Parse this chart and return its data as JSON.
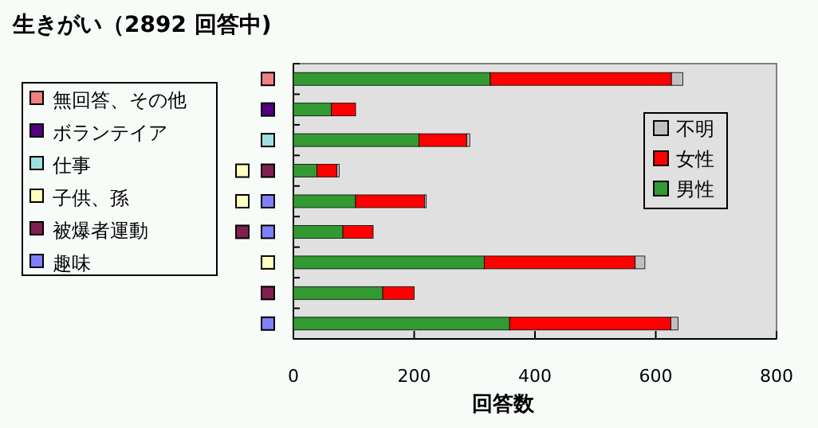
{
  "chart_data": {
    "type": "bar",
    "orientation": "horizontal",
    "stacked": true,
    "title": "生きがい（2892 回答中)",
    "xlabel": "回答数",
    "categories": [
      null,
      null,
      null,
      null,
      null,
      null,
      null,
      null,
      null
    ],
    "series": [
      {
        "name": "男性",
        "color": "#339933",
        "values": [
          326,
          63,
          208,
          39,
          103,
          82,
          316,
          148,
          358
        ]
      },
      {
        "name": "女性",
        "color": "#ff0000",
        "values": [
          300,
          40,
          79,
          33,
          114,
          50,
          250,
          52,
          267
        ]
      },
      {
        "name": "不明",
        "color": "#c0c0c0",
        "values": [
          19,
          0,
          5,
          4,
          3,
          0,
          16,
          0,
          12
        ]
      }
    ],
    "xlim": [
      0,
      800
    ],
    "xticks": [
      0,
      200,
      400,
      600,
      800
    ],
    "grid": false,
    "legend": "right",
    "annotations": [
      "無回答、その他",
      "ボランテイア",
      "仕事",
      "子供、孫",
      "被爆者運動",
      "趣味"
    ]
  }
}
